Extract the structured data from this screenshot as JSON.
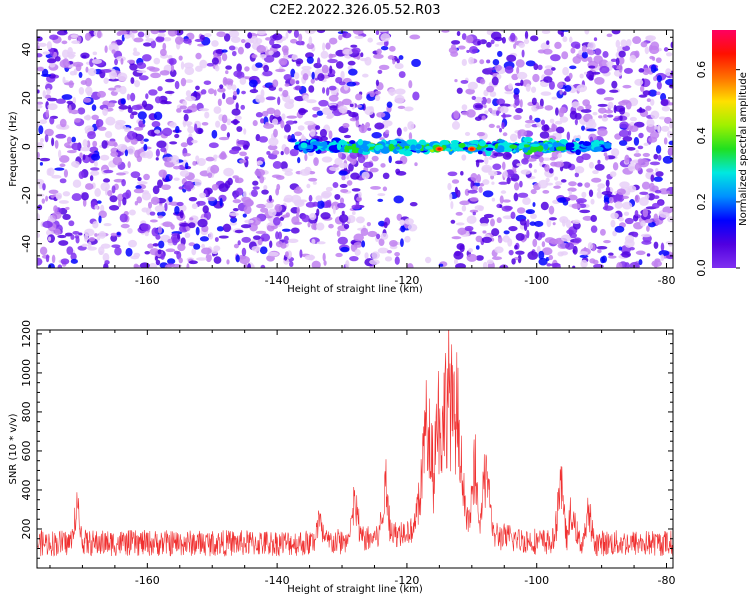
{
  "page_title": "C2E2.2022.326.05.52.R03",
  "chart_data": [
    {
      "type": "heatmap",
      "title": "C2E2.2022.326.05.52.R03",
      "xlabel": "Height of straight line (km)",
      "ylabel": "Frequency (Hz)",
      "xlim": [
        -177,
        -79
      ],
      "ylim": [
        -50,
        48
      ],
      "x_ticks": [
        -160,
        -140,
        -120,
        -100,
        -80
      ],
      "y_ticks": [
        -40,
        -20,
        0,
        20,
        40
      ],
      "colorbar": {
        "label": "Normalized spectral amplitude",
        "range": [
          0,
          0.72
        ],
        "ticks": [
          0,
          0.2,
          0.4,
          0.6
        ],
        "colormap": [
          "#ffffff",
          "#e8d0f8",
          "#c080f0",
          "#8030f0",
          "#5000e0",
          "#0000ff",
          "#0090ff",
          "#00e8e0",
          "#20e020",
          "#a0f000",
          "#ffe000",
          "#ff7000",
          "#ff1000",
          "#ff0060"
        ]
      },
      "features": {
        "band_center_hz": 0,
        "band_x_range": [
          -137,
          -89
        ],
        "gap_x_range": [
          -118.5,
          -113.5
        ],
        "peak_x": [
          -115,
          -110
        ]
      }
    },
    {
      "type": "line",
      "xlabel": "Height of straight line (km)",
      "ylabel": "SNR (10 * v/v)",
      "xlim": [
        -177,
        -79
      ],
      "ylim": [
        0,
        1220
      ],
      "x_ticks": [
        -160,
        -140,
        -120,
        -100,
        -80
      ],
      "y_ticks": [
        200,
        400,
        600,
        800,
        1000,
        1200
      ],
      "color": "#f03030",
      "baseline": 150,
      "peaks": [
        {
          "x": -170.8,
          "y": 400
        },
        {
          "x": -133.5,
          "y": 300
        },
        {
          "x": -128,
          "y": 420
        },
        {
          "x": -123.3,
          "y": 505
        },
        {
          "x": -116.8,
          "y": 930
        },
        {
          "x": -115,
          "y": 1000
        },
        {
          "x": -113.6,
          "y": 1220
        },
        {
          "x": -112.5,
          "y": 1000
        },
        {
          "x": -109.5,
          "y": 600
        },
        {
          "x": -107.8,
          "y": 700
        },
        {
          "x": -96.3,
          "y": 620
        },
        {
          "x": -94.5,
          "y": 380
        },
        {
          "x": -92,
          "y": 350
        }
      ]
    }
  ]
}
